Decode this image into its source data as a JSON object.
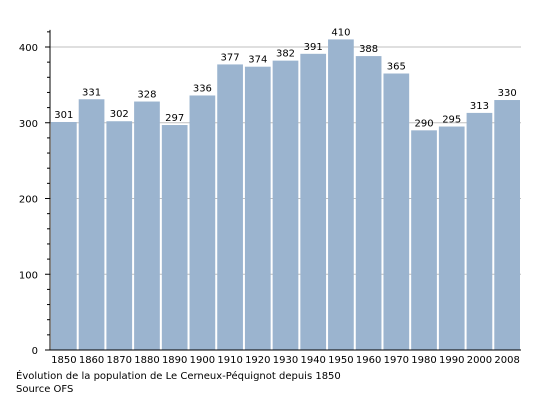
{
  "chart_data": {
    "type": "bar",
    "categories": [
      "1850",
      "1860",
      "1870",
      "1880",
      "1890",
      "1900",
      "1910",
      "1920",
      "1930",
      "1940",
      "1950",
      "1960",
      "1970",
      "1980",
      "1990",
      "2000",
      "2008"
    ],
    "values": [
      301,
      331,
      302,
      328,
      297,
      336,
      377,
      374,
      382,
      391,
      410,
      388,
      365,
      290,
      295,
      313,
      330
    ],
    "ylim": [
      0,
      420
    ],
    "yticks": [
      0,
      100,
      200,
      300,
      400
    ],
    "grid": true,
    "bar_color": "#9bb4cf",
    "grid_color": "#bfbfbf"
  },
  "caption": {
    "line1": "Évolution de la population de Le Cerneux-Péquignot depuis 1850",
    "line2": "Source OFS"
  }
}
